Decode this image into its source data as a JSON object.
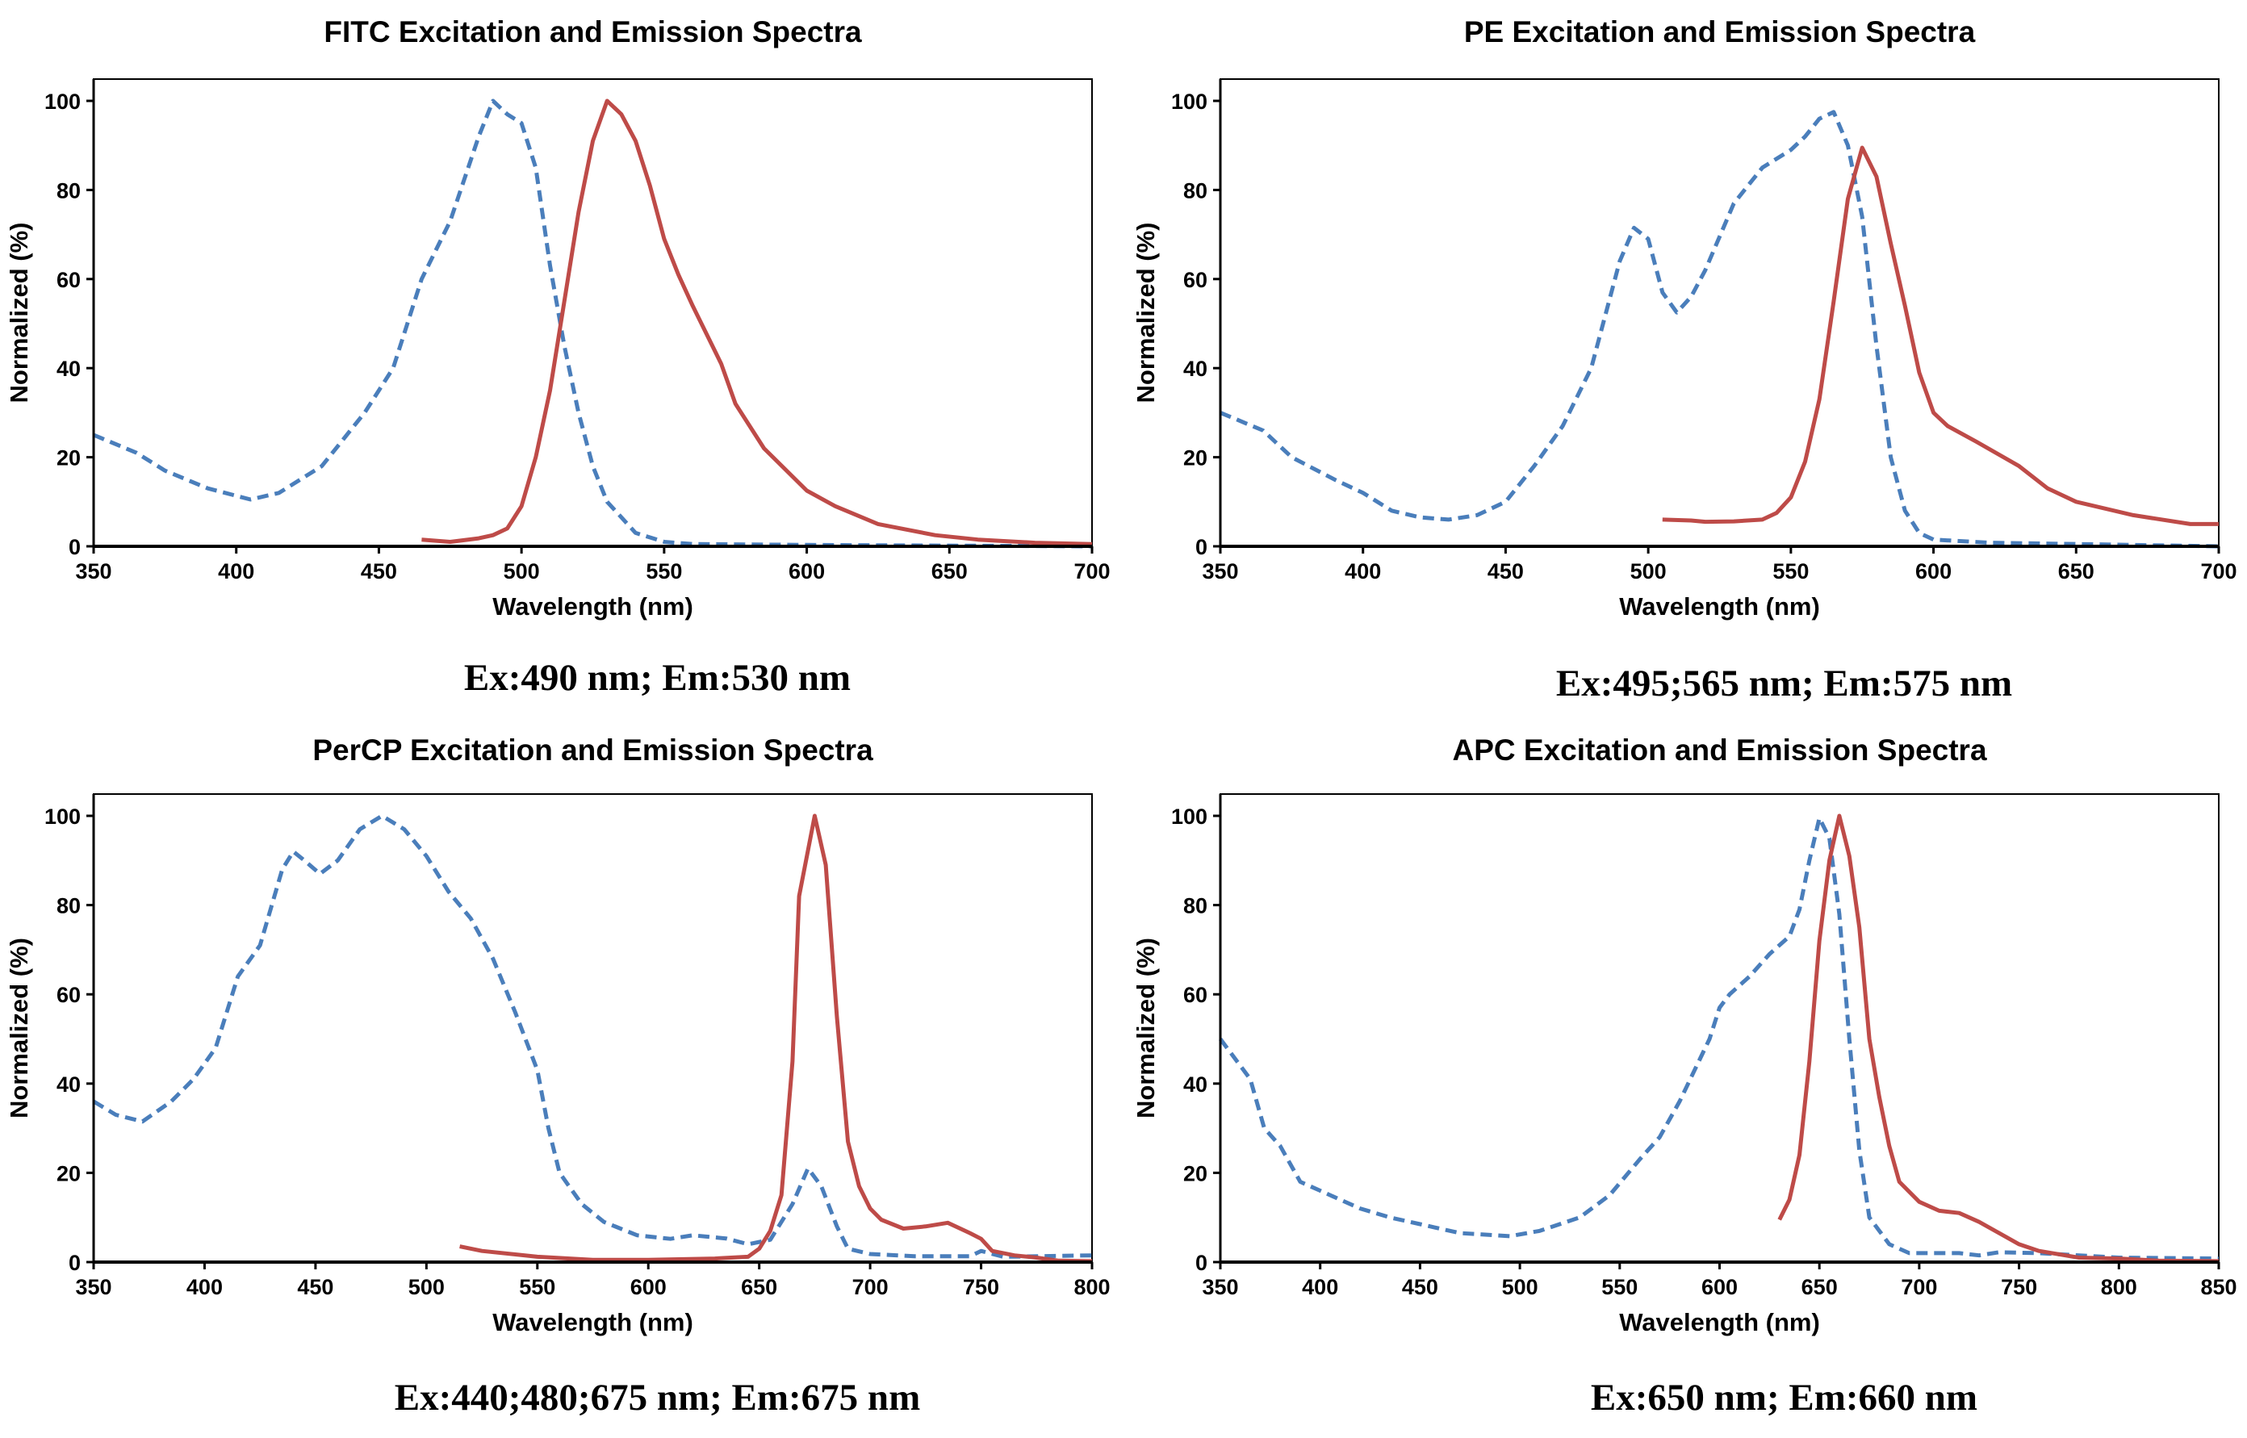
{
  "colors": {
    "excitation": "#4a7ebb",
    "emission": "#be4b48",
    "axis": "#000000"
  },
  "chart_data": [
    {
      "type": "line",
      "title": "FITC Excitation and Emission Spectra",
      "xlabel": "Wavelength (nm)",
      "ylabel": "Normalized (%)",
      "caption": "Ex:490 nm; Em:530 nm",
      "xlim": [
        350,
        700
      ],
      "ylim": [
        0,
        100
      ],
      "xticks": [
        350,
        400,
        450,
        500,
        550,
        600,
        650,
        700
      ],
      "yticks": [
        0,
        20,
        40,
        60,
        80,
        100
      ],
      "xtick_labels": [
        "350",
        "400",
        "450",
        "500",
        "550",
        "600",
        "650",
        "700"
      ],
      "ytick_labels": [
        "0",
        "20",
        "40",
        "60",
        "80",
        "100"
      ],
      "series": {
        "excitation": {
          "style": "dashed",
          "x": [
            350,
            365,
            375,
            390,
            405,
            415,
            430,
            445,
            455,
            465,
            475,
            485,
            490,
            495,
            500,
            505,
            510,
            515,
            520,
            525,
            530,
            540,
            550,
            560,
            600,
            700
          ],
          "y": [
            25,
            21,
            17,
            13,
            10.5,
            12,
            18,
            30,
            40,
            60,
            73,
            92,
            100,
            97,
            95,
            85,
            63,
            45,
            30,
            18,
            10,
            3,
            1,
            0.5,
            0.3,
            0
          ]
        },
        "emission": {
          "style": "solid",
          "x": [
            465,
            475,
            485,
            490,
            495,
            500,
            505,
            510,
            515,
            520,
            525,
            530,
            535,
            540,
            545,
            550,
            555,
            560,
            570,
            575,
            585,
            600,
            610,
            625,
            645,
            660,
            680,
            700
          ],
          "y": [
            1.5,
            1,
            1.8,
            2.5,
            4,
            9,
            20,
            35,
            55,
            75,
            91,
            100,
            97,
            91,
            81,
            69,
            61,
            54,
            41,
            32,
            22,
            12.5,
            9,
            5,
            2.5,
            1.5,
            0.8,
            0.5
          ]
        }
      }
    },
    {
      "type": "line",
      "title": "PE Excitation and Emission Spectra",
      "xlabel": "Wavelength (nm)",
      "ylabel": "Normalized (%)",
      "caption": "Ex:495;565 nm; Em:575 nm",
      "xlim": [
        350,
        700
      ],
      "ylim": [
        0,
        100
      ],
      "xticks": [
        350,
        400,
        450,
        500,
        550,
        600,
        650,
        700
      ],
      "yticks": [
        0,
        20,
        40,
        60,
        80,
        100
      ],
      "xtick_labels": [
        "350",
        "400",
        "450",
        "500",
        "550",
        "600",
        "650",
        "700"
      ],
      "ytick_labels": [
        "0",
        "20",
        "40",
        "60",
        "80",
        "100"
      ],
      "series": {
        "excitation": {
          "style": "dashed",
          "x": [
            350,
            365,
            375,
            390,
            400,
            410,
            420,
            430,
            440,
            450,
            460,
            470,
            480,
            490,
            495,
            500,
            505,
            510,
            515,
            520,
            530,
            540,
            550,
            555,
            560,
            565,
            570,
            575,
            580,
            585,
            590,
            595,
            600,
            620,
            650,
            700
          ],
          "y": [
            30,
            26,
            20,
            15,
            12,
            8,
            6.5,
            6,
            7,
            10,
            18,
            27,
            40,
            64,
            71.5,
            69,
            57,
            52.5,
            56,
            62,
            77,
            85,
            89,
            92,
            96,
            97.5,
            90,
            74,
            45,
            20,
            8,
            3,
            1.5,
            0.8,
            0.5,
            0
          ]
        },
        "emission": {
          "style": "solid",
          "x": [
            505,
            515,
            520,
            530,
            540,
            545,
            550,
            555,
            560,
            565,
            570,
            575,
            580,
            585,
            590,
            595,
            600,
            605,
            615,
            630,
            640,
            650,
            670,
            690,
            700
          ],
          "y": [
            6,
            5.8,
            5.5,
            5.6,
            6,
            7.5,
            11,
            19,
            33,
            55,
            78,
            89.5,
            83,
            68,
            54,
            39,
            30,
            27,
            23.5,
            18,
            13,
            10,
            7,
            5,
            5
          ]
        }
      }
    },
    {
      "type": "line",
      "title": "PerCP Excitation and Emission Spectra",
      "xlabel": "Wavelength (nm)",
      "ylabel": "Normalized (%)",
      "caption": "Ex:440;480;675 nm; Em:675 nm",
      "xlim": [
        350,
        800
      ],
      "ylim": [
        0,
        100
      ],
      "xticks": [
        350,
        400,
        450,
        500,
        550,
        600,
        650,
        700,
        750,
        800
      ],
      "yticks": [
        0,
        20,
        40,
        60,
        80,
        100
      ],
      "xtick_labels": [
        "350",
        "400",
        "450",
        "500",
        "550",
        "600",
        "650",
        "700",
        "750",
        "800"
      ],
      "ytick_labels": [
        "0",
        "20",
        "40",
        "60",
        "80",
        "100"
      ],
      "series": {
        "excitation": {
          "style": "dashed",
          "x": [
            350,
            360,
            372,
            385,
            395,
            405,
            415,
            425,
            435,
            440,
            445,
            452,
            460,
            470,
            480,
            490,
            500,
            510,
            520,
            530,
            540,
            550,
            555,
            560,
            570,
            580,
            595,
            610,
            620,
            635,
            645,
            655,
            665,
            672,
            678,
            685,
            690,
            700,
            720,
            745,
            750,
            760,
            800
          ],
          "y": [
            36,
            33,
            31.5,
            36,
            41,
            48,
            64,
            71,
            88,
            92,
            90,
            87,
            90,
            97,
            100,
            97,
            91,
            83,
            77,
            68,
            56,
            43,
            30,
            20,
            13,
            9,
            6,
            5.2,
            6,
            5.3,
            4,
            5,
            13,
            21,
            17,
            8,
            3,
            1.8,
            1.3,
            1.3,
            2.5,
            1.2,
            1.5
          ]
        },
        "emission": {
          "style": "solid",
          "x": [
            515,
            525,
            550,
            575,
            600,
            630,
            645,
            650,
            655,
            660,
            665,
            668,
            675,
            680,
            685,
            690,
            695,
            700,
            705,
            715,
            725,
            735,
            745,
            750,
            755,
            765,
            775,
            785,
            800
          ],
          "y": [
            3.5,
            2.5,
            1.2,
            0.5,
            0.5,
            0.8,
            1.2,
            3,
            7,
            15,
            45,
            82,
            100,
            89,
            55,
            27,
            17,
            12,
            9.5,
            7.5,
            8,
            8.8,
            6.5,
            5.2,
            2.5,
            1.5,
            1,
            0.3,
            0.2
          ]
        }
      }
    },
    {
      "type": "line",
      "title": "APC Excitation and Emission Spectra",
      "xlabel": "Wavelength (nm)",
      "ylabel": "Normalized (%)",
      "caption": "Ex:650 nm; Em:660 nm",
      "xlim": [
        350,
        850
      ],
      "ylim": [
        0,
        100
      ],
      "xticks": [
        350,
        400,
        450,
        500,
        550,
        600,
        650,
        700,
        750,
        800,
        850
      ],
      "yticks": [
        0,
        20,
        40,
        60,
        80,
        100
      ],
      "xtick_labels": [
        "350",
        "400",
        "450",
        "500",
        "550",
        "600",
        "650",
        "700",
        "750",
        "800",
        "850"
      ],
      "ytick_labels": [
        "0",
        "20",
        "40",
        "60",
        "80",
        "100"
      ],
      "series": {
        "excitation": {
          "style": "dashed",
          "x": [
            350,
            355,
            365,
            372,
            380,
            390,
            400,
            410,
            420,
            435,
            450,
            470,
            495,
            510,
            530,
            545,
            560,
            570,
            580,
            595,
            600,
            605,
            615,
            625,
            635,
            640,
            645,
            650,
            655,
            660,
            665,
            670,
            675,
            685,
            695,
            720,
            730,
            740,
            760,
            800,
            850
          ],
          "y": [
            50,
            47,
            41,
            30,
            26,
            18,
            16,
            14,
            12,
            10,
            8.5,
            6.5,
            5.8,
            7,
            10,
            15,
            23,
            28,
            36,
            50,
            57,
            60,
            64,
            69,
            73,
            79,
            90,
            99.5,
            95,
            78,
            50,
            25,
            10,
            4,
            2,
            2,
            1.5,
            2.2,
            2,
            1,
            0.8
          ]
        },
        "emission": {
          "style": "solid",
          "x": [
            630,
            635,
            640,
            645,
            650,
            655,
            660,
            665,
            670,
            675,
            680,
            685,
            690,
            700,
            710,
            720,
            730,
            740,
            750,
            760,
            780,
            800,
            820,
            850
          ],
          "y": [
            9.5,
            14,
            24,
            45,
            72,
            90,
            100,
            91,
            75,
            50,
            37,
            26,
            18,
            13.5,
            11.5,
            11,
            9,
            6.5,
            4,
            2.5,
            1,
            0.8,
            0.3,
            0.2
          ]
        }
      }
    }
  ]
}
